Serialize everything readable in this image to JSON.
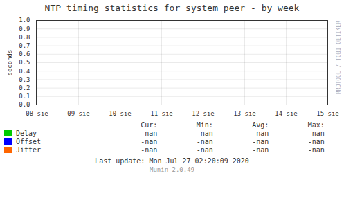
{
  "chart_data": {
    "type": "line",
    "title": "NTP timing statistics for system peer - by week",
    "ylabel": "seconds",
    "categories": [
      "08 sie",
      "09 sie",
      "10 sie",
      "11 sie",
      "12 sie",
      "13 sie",
      "14 sie",
      "15 sie"
    ],
    "series": [
      {
        "name": "Delay",
        "color": "#00cc00",
        "values": [
          null,
          null,
          null,
          null,
          null,
          null,
          null,
          null
        ],
        "stats": [
          "-nan",
          "-nan",
          "-nan",
          "-nan"
        ]
      },
      {
        "name": "Offset",
        "color": "#0000ff",
        "values": [
          null,
          null,
          null,
          null,
          null,
          null,
          null,
          null
        ],
        "stats": [
          "-nan",
          "-nan",
          "-nan",
          "-nan"
        ]
      },
      {
        "name": "Jitter",
        "color": "#ff6600",
        "values": [
          null,
          null,
          null,
          null,
          null,
          null,
          null,
          null
        ],
        "stats": [
          "-nan",
          "-nan",
          "-nan",
          "-nan"
        ]
      }
    ],
    "stats_headers": [
      "Cur:",
      "Min:",
      "Avg:",
      "Max:"
    ],
    "ylim": [
      0.0,
      1.0
    ],
    "yticks": [
      {
        "value": 0.0,
        "label": "0.0"
      },
      {
        "value": 0.1,
        "label": "0.1"
      },
      {
        "value": 0.2,
        "label": "0.2"
      },
      {
        "value": 0.3,
        "label": "0.3"
      },
      {
        "value": 0.4,
        "label": "0.4"
      },
      {
        "value": 0.5,
        "label": "0.5"
      },
      {
        "value": 0.6,
        "label": "0.6"
      },
      {
        "value": 0.7,
        "label": "0.7"
      },
      {
        "value": 0.8,
        "label": "0.8"
      },
      {
        "value": 0.9,
        "label": "0.9"
      },
      {
        "value": 1.0,
        "label": "1.0"
      }
    ],
    "grid": true,
    "legend": "bottom",
    "footer": [
      "Last update: Mon Jul 27 02:20:09 2020",
      "Munin 2.0.49"
    ],
    "side_label": "RRDTOOL / TOBI OETIKER"
  }
}
